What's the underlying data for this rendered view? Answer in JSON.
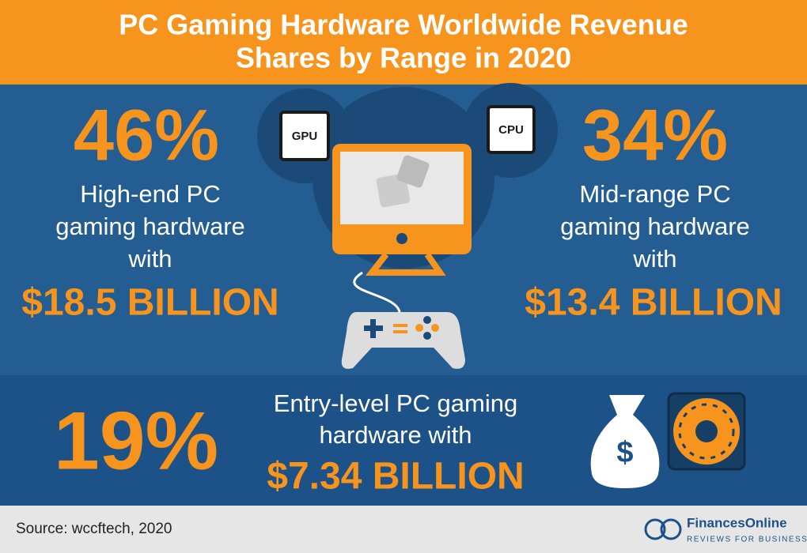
{
  "header": {
    "title_lines": [
      "PC Gaming Hardware Worldwide Revenue",
      "Shares by Range in 2020"
    ]
  },
  "stats": [
    {
      "percent": "46%",
      "lines": [
        "High-end PC",
        "gaming hardware",
        "with"
      ],
      "amount": "$18.5 BILLION"
    },
    {
      "percent": "34%",
      "lines": [
        "Mid-range PC",
        "gaming hardware",
        "with"
      ],
      "amount": "$13.4 BILLION"
    },
    {
      "percent": "19%",
      "lines": [
        "Entry-level PC gaming",
        "hardware with"
      ],
      "amount": "$7.34 BILLION"
    }
  ],
  "icons": {
    "gpu": "GPU",
    "cpu": "CPU",
    "bag": "$"
  },
  "footer": {
    "source": "Source: wccftech, 2020",
    "brand": "FinancesOnline",
    "tagline": "REVIEWS FOR BUSINESS"
  }
}
